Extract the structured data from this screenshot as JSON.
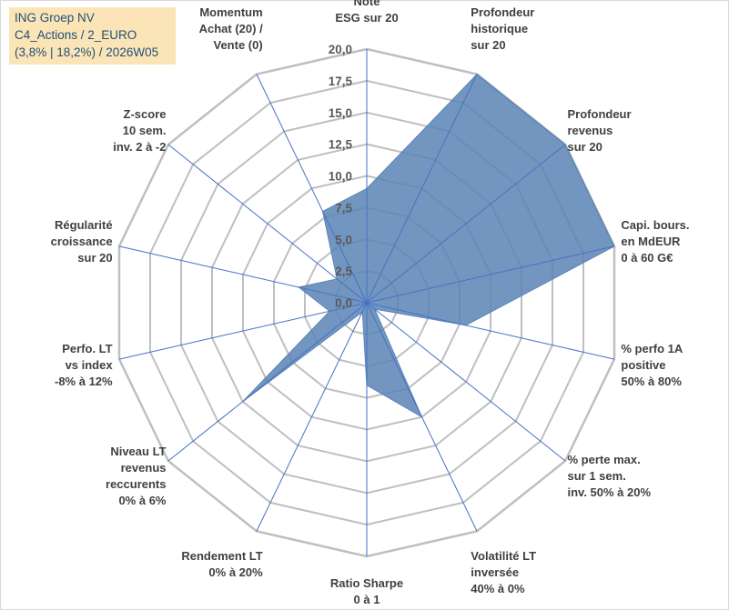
{
  "chart_data": {
    "type": "radar",
    "title_lines": [
      "ING Groep NV",
      "C4_Actions / 2_EURO",
      "(3,8% | 18,2%) / 2026W05"
    ],
    "rmin": 0,
    "rmax": 20,
    "ticks": [
      "0,0",
      "2,5",
      "5,0",
      "7,5",
      "10,0",
      "12,5",
      "15,0",
      "17,5",
      "20,0"
    ],
    "axes": [
      {
        "label": [
          "Note",
          "ESG sur 20"
        ],
        "value": 9.0
      },
      {
        "label": [
          "Profondeur",
          "historique",
          "sur 20"
        ],
        "value": 20.0
      },
      {
        "label": [
          "Profondeur",
          "revenus",
          "sur 20"
        ],
        "value": 20.0
      },
      {
        "label": [
          "Capi. bours.",
          "en MdEUR",
          "0 à 60 G€"
        ],
        "value": 20.0
      },
      {
        "label": [
          "% perfo 1A",
          "positive",
          "50% à 80%"
        ],
        "value": 8.0
      },
      {
        "label": [
          "% perte max.",
          "sur 1 sem.",
          "inv. 50% à 20%"
        ],
        "value": 0.8
      },
      {
        "label": [
          "Volatilité LT",
          "inversée",
          "40% à 0%"
        ],
        "value": 10.0
      },
      {
        "label": [
          "Ratio Sharpe",
          "0 à 1"
        ],
        "value": 6.5
      },
      {
        "label": [
          "Rendement LT",
          "0% à 20%"
        ],
        "value": 0.8
      },
      {
        "label": [
          "Niveau LT",
          "revenus",
          "reccurents",
          "0% à 6%"
        ],
        "value": 12.5
      },
      {
        "label": [
          "Perfo. LT",
          "vs index",
          "-8% à 12%"
        ],
        "value": 3.0
      },
      {
        "label": [
          "Régularité",
          "croissance",
          "sur 20"
        ],
        "value": 5.5
      },
      {
        "label": [
          "Z-score",
          "10 sem.",
          "inv. 2 à -2"
        ],
        "value": 3.0
      },
      {
        "label": [
          "Momentum",
          "Achat (20) /",
          "Vente (0)"
        ],
        "value": 8.0
      }
    ],
    "fill_color": "#5b84b5",
    "line_color": "#4472c4",
    "grid_color": "#bfbfbf"
  }
}
